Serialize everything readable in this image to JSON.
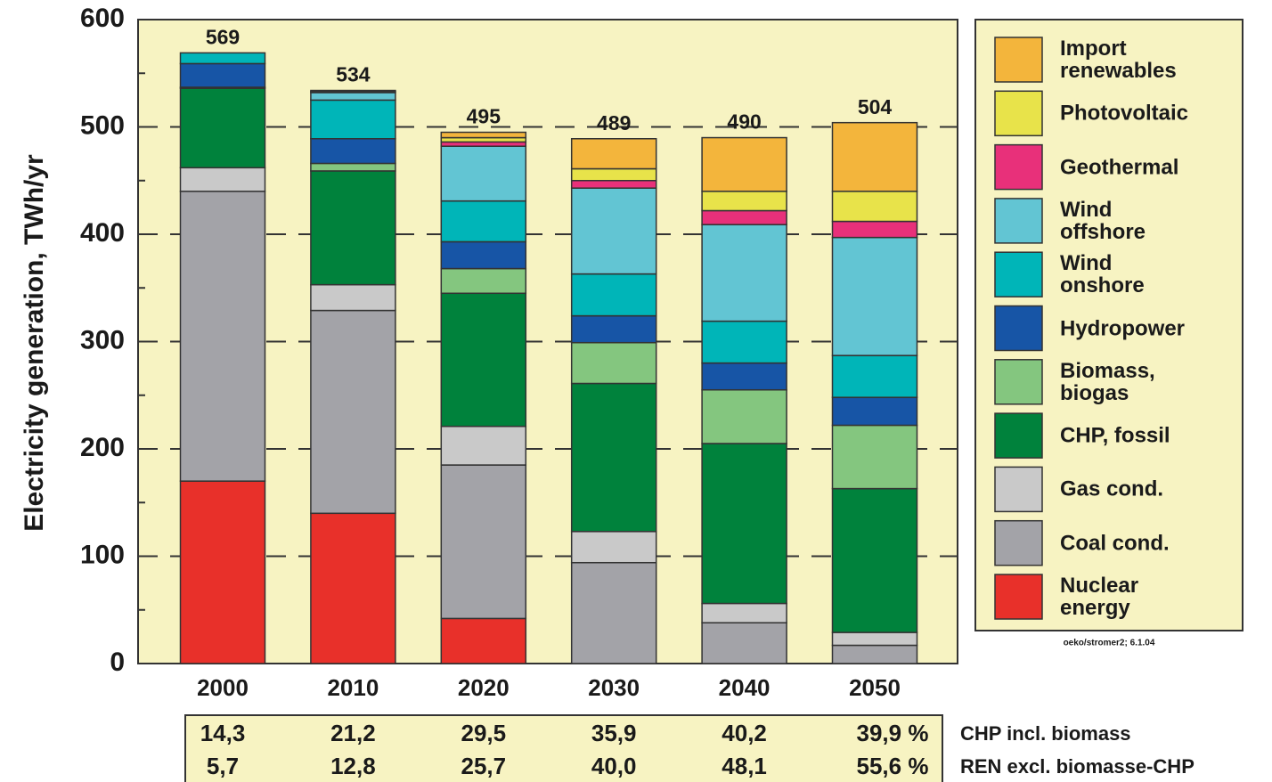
{
  "chart_data": {
    "type": "stacked_bar",
    "y_label": "Electricity generation, TWh/yr",
    "categories": [
      "2000",
      "2010",
      "2020",
      "2030",
      "2040",
      "2050"
    ],
    "ylim": [
      0,
      600
    ],
    "yticks": [
      0,
      100,
      200,
      300,
      400,
      500,
      600
    ],
    "grid": true,
    "series": [
      {
        "name": "Nuclear energy",
        "color": "#e8302a",
        "values": [
          170,
          140,
          42,
          0,
          0,
          0
        ]
      },
      {
        "name": "Coal cond.",
        "color": "#a3a3a8",
        "values": [
          270,
          189,
          143,
          94,
          38,
          17
        ]
      },
      {
        "name": "Gas cond.",
        "color": "#c9c9c9",
        "values": [
          22,
          24,
          36,
          29,
          18,
          12
        ]
      },
      {
        "name": "CHP, fossil",
        "color": "#00823c",
        "values": [
          74,
          106,
          124,
          138,
          149,
          134
        ]
      },
      {
        "name": "Biomass, biogas",
        "color": "#84c67f",
        "values": [
          1,
          7,
          23,
          38,
          50,
          59
        ]
      },
      {
        "name": "Hydropower",
        "color": "#1755a6",
        "values": [
          22,
          23,
          25,
          25,
          25,
          26
        ]
      },
      {
        "name": "Wind onshore",
        "color": "#00b5b8",
        "values": [
          10,
          36,
          38,
          39,
          39,
          39
        ]
      },
      {
        "name": "Wind offshore",
        "color": "#62c5d3",
        "values": [
          0,
          7,
          51,
          80,
          90,
          110
        ]
      },
      {
        "name": "Geothermal",
        "color": "#e8307a",
        "values": [
          0,
          1,
          4,
          7,
          13,
          15
        ]
      },
      {
        "name": "Photovoltaic",
        "color": "#e8e34a",
        "values": [
          0,
          1,
          4,
          11,
          18,
          28
        ]
      },
      {
        "name": "Import renewables",
        "color": "#f3b53c",
        "values": [
          0,
          0,
          5,
          28,
          50,
          64
        ]
      }
    ],
    "totals": [
      569,
      534,
      495,
      489,
      490,
      504
    ],
    "credit": "oeko/stromer2; 6.1.04",
    "table": {
      "rows": [
        {
          "label": "CHP incl. biomass",
          "cells": [
            "14,3",
            "21,2",
            "29,5",
            "35,9",
            "40,2",
            "39,9 %"
          ]
        },
        {
          "label": "REN excl. biomasse-CHP",
          "cells": [
            "5,7",
            "12,8",
            "25,7",
            "40,0",
            "48,1",
            "55,6 %"
          ]
        }
      ]
    }
  }
}
